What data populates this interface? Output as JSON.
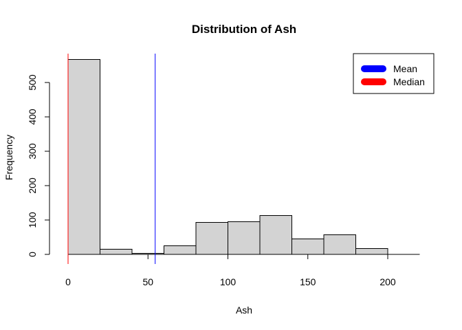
{
  "chart_data": {
    "type": "bar",
    "title": "Distribution of Ash",
    "xlabel": "Ash",
    "ylabel": "Frequency",
    "bins": [
      {
        "x0": 0,
        "x1": 20,
        "count": 567
      },
      {
        "x0": 20,
        "x1": 40,
        "count": 15
      },
      {
        "x0": 40,
        "x1": 60,
        "count": 3
      },
      {
        "x0": 60,
        "x1": 80,
        "count": 25
      },
      {
        "x0": 80,
        "x1": 100,
        "count": 93
      },
      {
        "x0": 100,
        "x1": 120,
        "count": 95
      },
      {
        "x0": 120,
        "x1": 140,
        "count": 113
      },
      {
        "x0": 140,
        "x1": 160,
        "count": 45
      },
      {
        "x0": 160,
        "x1": 180,
        "count": 57
      },
      {
        "x0": 180,
        "x1": 200,
        "count": 17
      }
    ],
    "xlim": [
      0,
      220
    ],
    "ylim": [
      0,
      590
    ],
    "x_ticks": [
      0,
      50,
      100,
      150,
      200
    ],
    "y_ticks": [
      0,
      100,
      200,
      300,
      400,
      500
    ],
    "bar_color": "#d3d3d3",
    "mean": 54.5,
    "median": 0,
    "mean_color": "#0000ff",
    "median_color": "#ff0000",
    "legend": {
      "position": "top-right",
      "entries": [
        {
          "label": "Mean",
          "color": "#0000ff"
        },
        {
          "label": "Median",
          "color": "#ff0000"
        }
      ]
    }
  }
}
